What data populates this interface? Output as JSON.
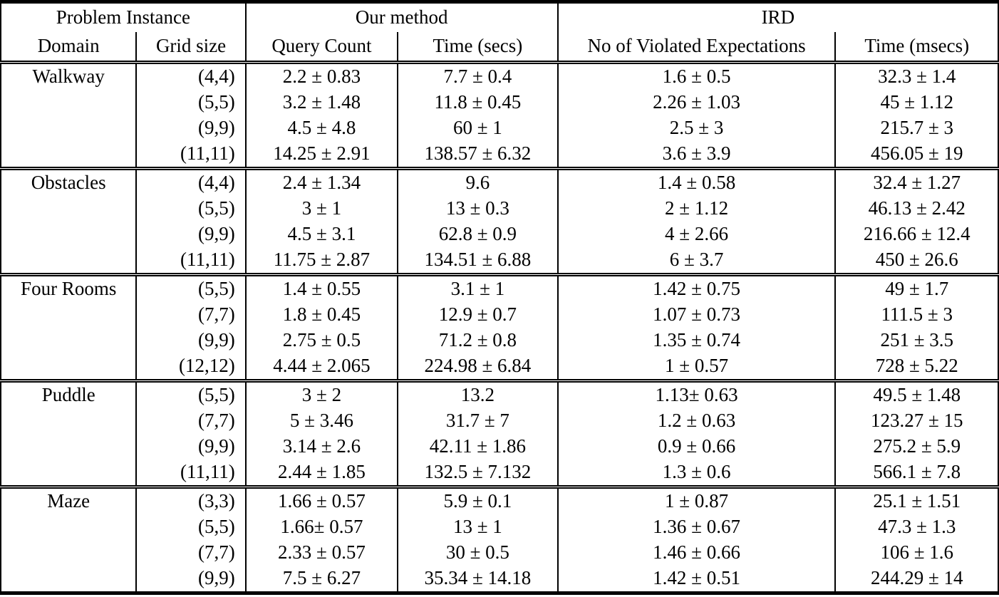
{
  "table": {
    "header_groups": [
      "Problem Instance",
      "Our method",
      "IRD"
    ],
    "columns": [
      "Domain",
      "Grid size",
      "Query Count",
      "Time (secs)",
      "No of Violated Expectations",
      "Time (msecs)"
    ],
    "sections": [
      {
        "domain": "Walkway",
        "rows": [
          [
            "(4,4)",
            "2.2 ± 0.83",
            "7.7 ± 0.4",
            "1.6 ± 0.5",
            "32.3 ± 1.4"
          ],
          [
            "(5,5)",
            "3.2 ± 1.48",
            "11.8 ± 0.45",
            "2.26 ± 1.03",
            "45 ± 1.12"
          ],
          [
            "(9,9)",
            "4.5 ± 4.8",
            "60 ± 1",
            "2.5 ± 3",
            "215.7 ± 3"
          ],
          [
            "(11,11)",
            "14.25 ± 2.91",
            "138.57 ± 6.32",
            "3.6 ± 3.9",
            "456.05 ± 19"
          ]
        ]
      },
      {
        "domain": "Obstacles",
        "rows": [
          [
            "(4,4)",
            "2.4 ± 1.34",
            "9.6",
            "1.4 ± 0.58",
            "32.4 ± 1.27"
          ],
          [
            "(5,5)",
            "3 ± 1",
            "13 ± 0.3",
            "2 ± 1.12",
            "46.13 ± 2.42"
          ],
          [
            "(9,9)",
            "4.5 ± 3.1",
            "62.8 ± 0.9",
            "4 ± 2.66",
            "216.66 ± 12.4"
          ],
          [
            "(11,11)",
            "11.75 ± 2.87",
            "134.51 ± 6.88",
            "6 ± 3.7",
            "450 ± 26.6"
          ]
        ]
      },
      {
        "domain": "Four Rooms",
        "rows": [
          [
            "(5,5)",
            "1.4 ± 0.55",
            "3.1 ± 1",
            "1.42 ± 0.75",
            "49 ± 1.7"
          ],
          [
            "(7,7)",
            "1.8 ± 0.45",
            "12.9 ± 0.7",
            "1.07 ± 0.73",
            "111.5 ± 3"
          ],
          [
            "(9,9)",
            "2.75 ± 0.5",
            "71.2 ± 0.8",
            "1.35 ± 0.74",
            "251 ± 3.5"
          ],
          [
            "(12,12)",
            "4.44 ± 2.065",
            "224.98 ± 6.84",
            "1 ± 0.57",
            "728 ± 5.22"
          ]
        ]
      },
      {
        "domain": "Puddle",
        "rows": [
          [
            "(5,5)",
            "3 ± 2",
            "13.2",
            "1.13± 0.63",
            "49.5 ± 1.48"
          ],
          [
            "(7,7)",
            "5 ± 3.46",
            "31.7 ± 7",
            "1.2 ± 0.63",
            "123.27 ± 15"
          ],
          [
            "(9,9)",
            "3.14 ± 2.6",
            "42.11 ± 1.86",
            "0.9 ± 0.66",
            "275.2 ± 5.9"
          ],
          [
            "(11,11)",
            "2.44 ± 1.85",
            "132.5 ± 7.132",
            "1.3 ± 0.6",
            "566.1 ± 7.8"
          ]
        ]
      },
      {
        "domain": "Maze",
        "rows": [
          [
            "(3,3)",
            "1.66 ± 0.57",
            "5.9 ± 0.1",
            "1 ± 0.87",
            "25.1 ± 1.51"
          ],
          [
            "(5,5)",
            "1.66± 0.57",
            "13 ± 1",
            "1.36 ± 0.67",
            "47.3 ± 1.3"
          ],
          [
            "(7,7)",
            "2.33 ± 0.57",
            "30 ± 0.5",
            "1.46 ± 0.66",
            "106 ± 1.6"
          ],
          [
            "(9,9)",
            "7.5 ± 6.27",
            "35.34 ± 14.18",
            "1.42 ± 0.51",
            "244.29 ± 14"
          ]
        ]
      }
    ]
  }
}
